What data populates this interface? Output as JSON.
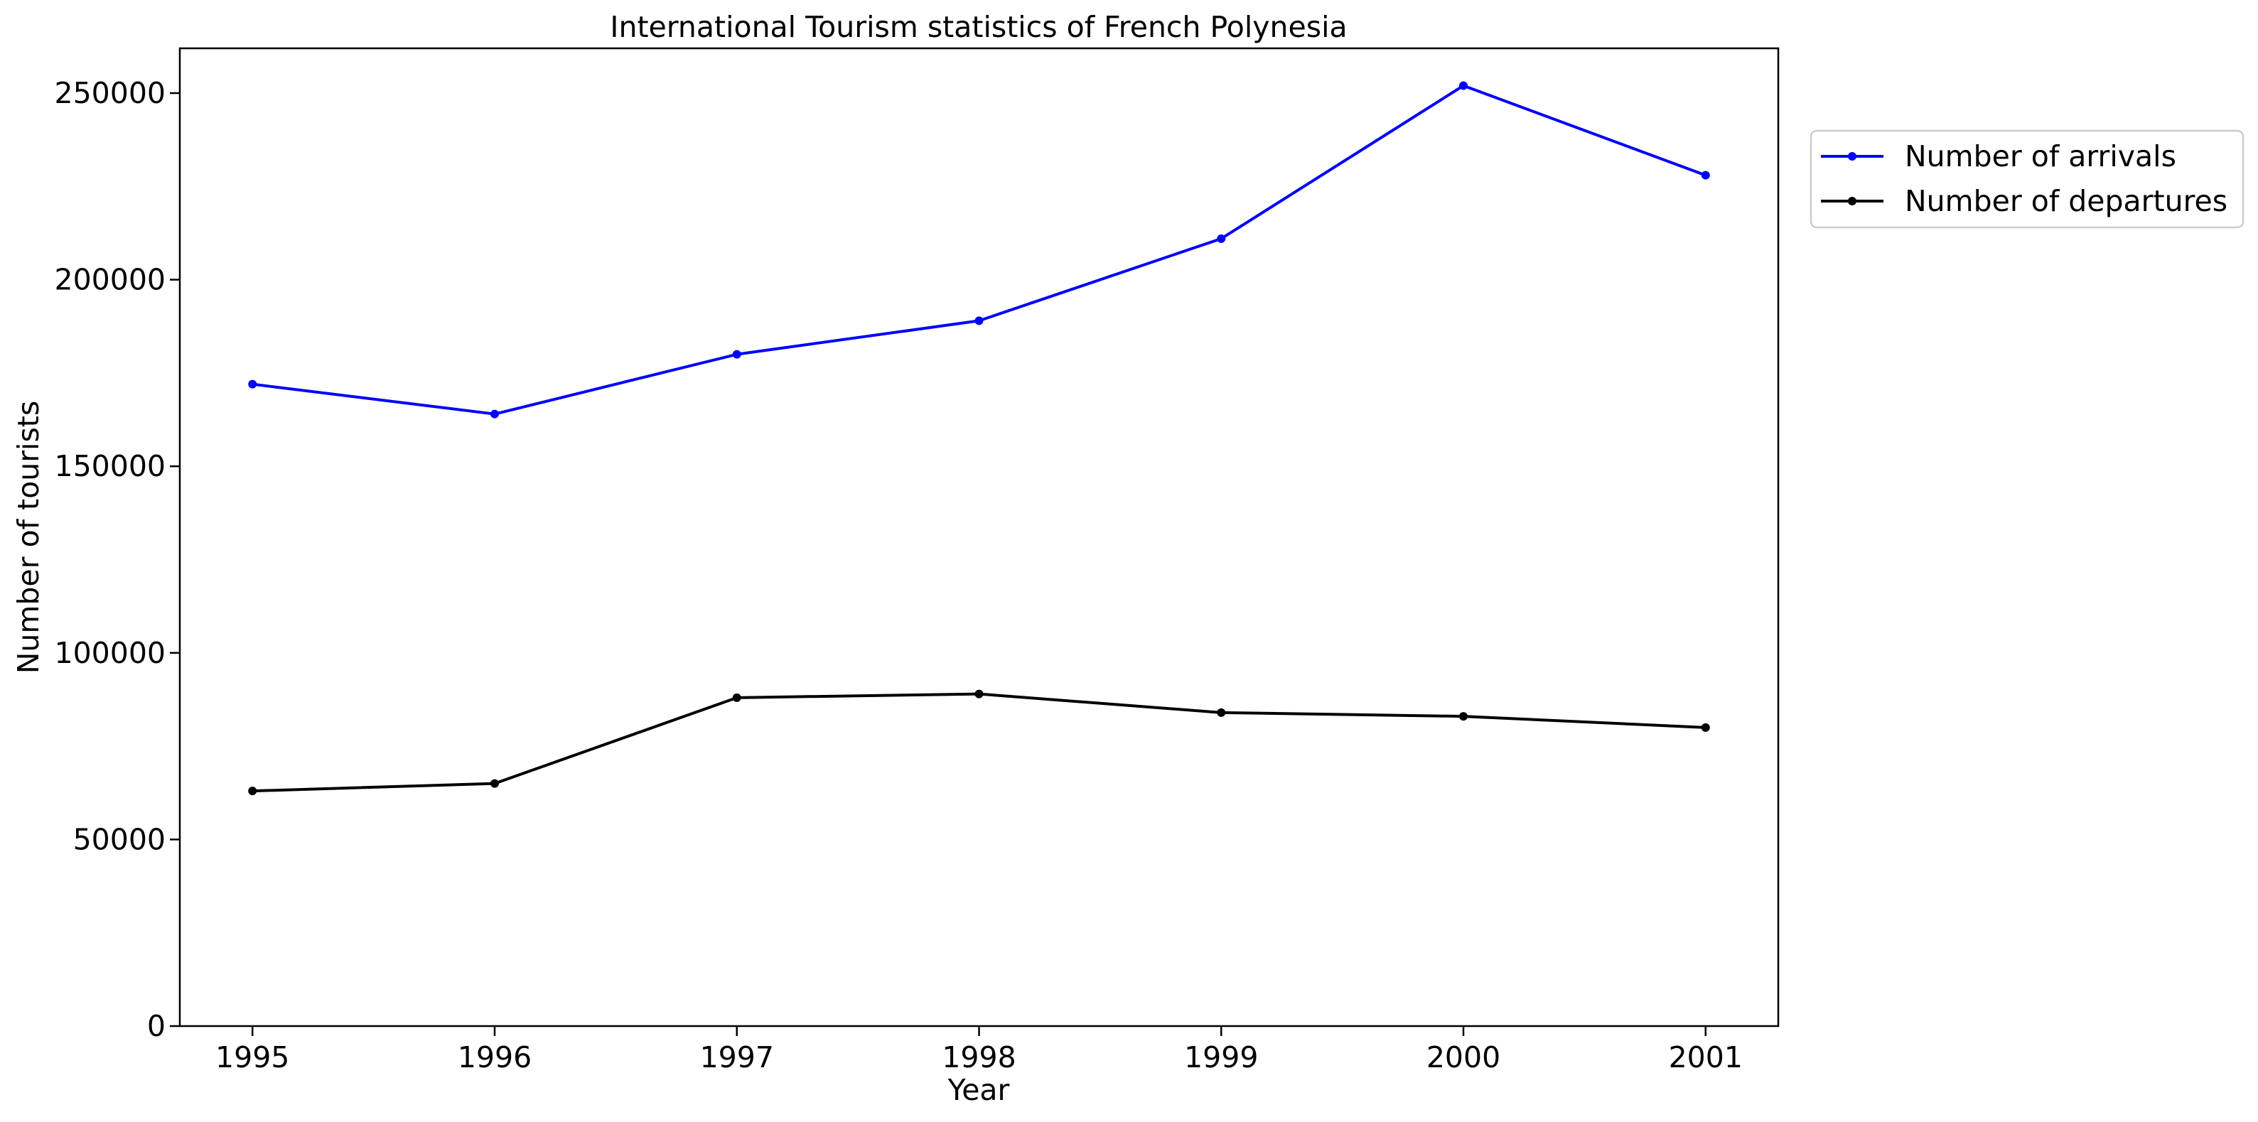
{
  "chart_data": {
    "type": "line",
    "title": "International Tourism statistics of French Polynesia",
    "xlabel": "Year",
    "ylabel": "Number of tourists",
    "x": [
      1995,
      1996,
      1997,
      1998,
      1999,
      2000,
      2001
    ],
    "xticks": [
      "1995",
      "1996",
      "1997",
      "1998",
      "1999",
      "2000",
      "2001"
    ],
    "xlim": [
      1994.7,
      2001.3
    ],
    "ylim": [
      0,
      262000
    ],
    "yticks": [
      0,
      50000,
      100000,
      150000,
      200000,
      250000
    ],
    "grid": false,
    "legend_position": "outside-top-right",
    "series": [
      {
        "name": "Number of arrivals",
        "color": "#0000ff",
        "marker": "dot",
        "values": [
          172000,
          164000,
          180000,
          189000,
          211000,
          252000,
          228000
        ]
      },
      {
        "name": "Number of departures",
        "color": "#000000",
        "marker": "dot",
        "values": [
          63000,
          65000,
          88000,
          89000,
          84000,
          83000,
          80000
        ]
      }
    ]
  }
}
